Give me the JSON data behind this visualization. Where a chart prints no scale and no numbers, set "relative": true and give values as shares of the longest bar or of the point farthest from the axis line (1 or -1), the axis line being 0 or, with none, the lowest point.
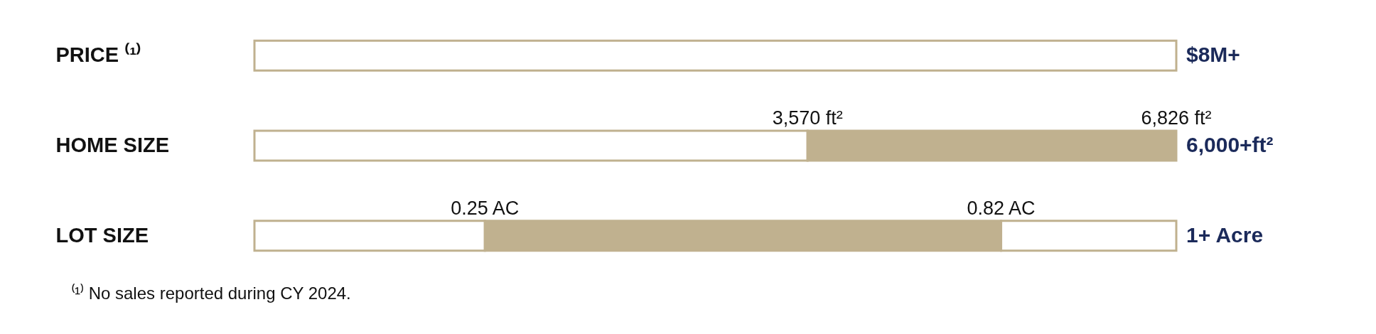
{
  "chart_data": {
    "type": "bar",
    "orientation": "horizontal",
    "stacked": true,
    "relative": true,
    "categories": [
      "PRICE ⁽¹⁾",
      "HOME SIZE",
      "LOT SIZE"
    ],
    "series": [
      {
        "color": "#ffffff",
        "values": [
          1,
          0.6,
          0.25
        ]
      },
      {
        "color": "#c0b18f",
        "values": [
          null,
          0.4,
          0.56
        ]
      },
      {
        "color": "#ffffff",
        "values": [
          null,
          null,
          0.19
        ]
      }
    ],
    "annotations": [
      {
        "text": "$8M+",
        "x": 1,
        "y": "PRICE ⁽¹⁾"
      },
      {
        "text": "3,570 ft²",
        "x": 0.6,
        "y": "HOME SIZE"
      },
      {
        "text": "6,826 ft²",
        "x": 1,
        "y": "HOME SIZE"
      },
      {
        "text": "6,000+ft²",
        "x": 1,
        "y": "HOME SIZE"
      },
      {
        "text": "0.25 AC",
        "x": 0.25,
        "y": "LOT SIZE"
      },
      {
        "text": "0.82 AC",
        "x": 0.81,
        "y": "LOT SIZE"
      },
      {
        "text": "1+ Acre",
        "x": 1,
        "y": "LOT SIZE"
      },
      "⁽¹⁾ No sales reported during CY 2024."
    ]
  }
}
